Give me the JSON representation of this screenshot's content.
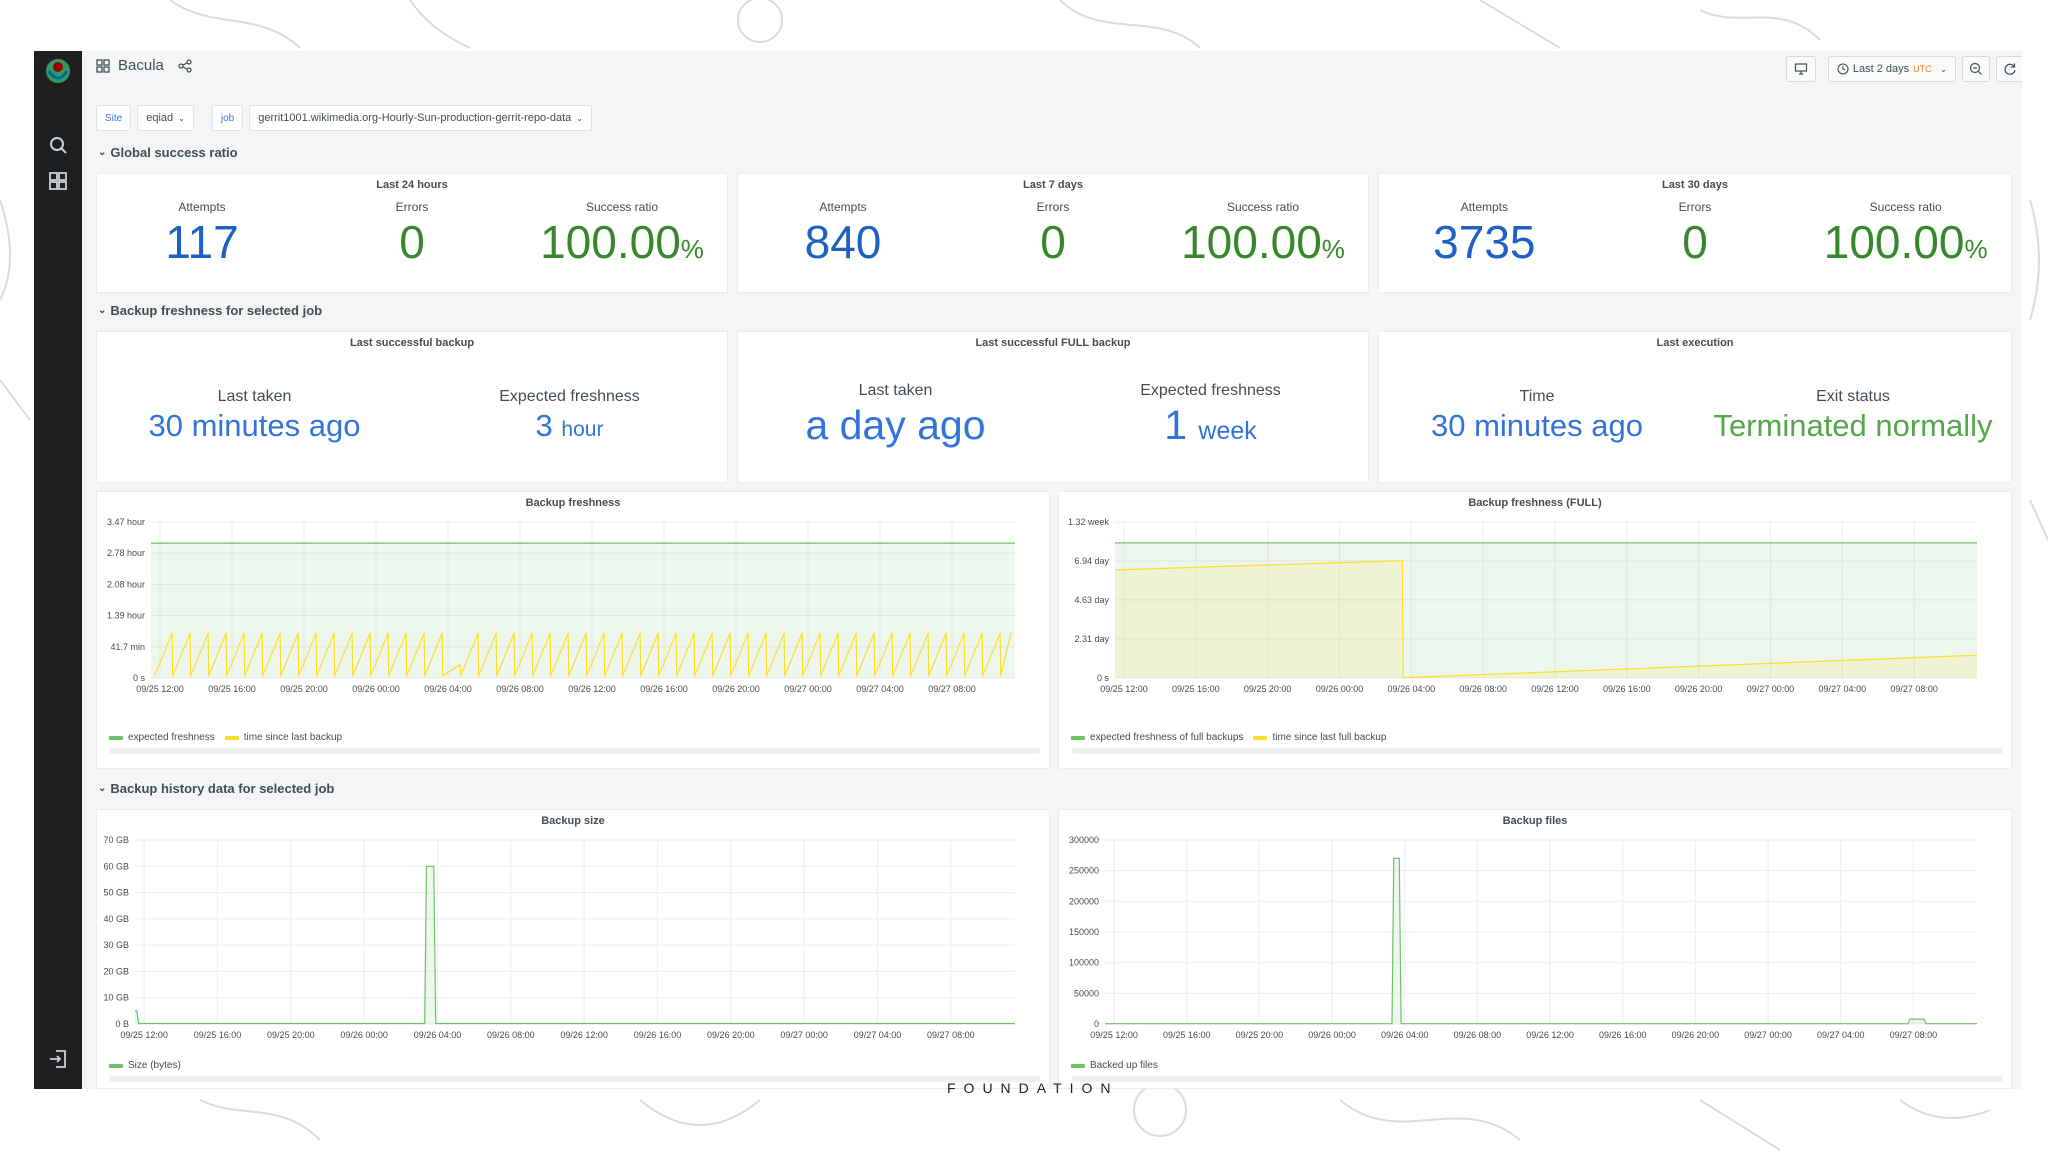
{
  "colors": {
    "blue": "#1f60c4",
    "green": "#37872d",
    "bright_blue": "#3274d9",
    "bright_green": "#56a64b",
    "series_green": "#73bf69",
    "series_yellow": "#fade2a",
    "sidebar": "#1f1f20",
    "background": "#f4f5f5"
  },
  "sidebar": {
    "logo_icon": "wikimedia-logo-icon",
    "items": [
      {
        "name": "search",
        "icon": "search-icon"
      },
      {
        "name": "dashboards",
        "icon": "grid-icon"
      },
      {
        "name": "sign-in",
        "icon": "sign-in-icon"
      }
    ]
  },
  "header": {
    "dashboard_title": "Bacula",
    "time_range": "Last 2 days",
    "timezone": "UTC"
  },
  "variables": [
    {
      "label": "Site",
      "value": "eqiad"
    },
    {
      "label": "job",
      "value": "gerrit1001.wikimedia.org-Hourly-Sun-production-gerrit-repo-data"
    }
  ],
  "rows": {
    "global": "Global success ratio",
    "freshness": "Backup freshness for selected job",
    "history": "Backup history data for selected job"
  },
  "success_panels": [
    {
      "title": "Last 24 hours",
      "attempts": "117",
      "errors": "0",
      "ratio": "100.00",
      "unit": "%"
    },
    {
      "title": "Last 7 days",
      "attempts": "840",
      "errors": "0",
      "ratio": "100.00",
      "unit": "%"
    },
    {
      "title": "Last 30 days",
      "attempts": "3735",
      "errors": "0",
      "ratio": "100.00",
      "unit": "%"
    }
  ],
  "stat_labels": {
    "attempts": "Attempts",
    "errors": "Errors",
    "ratio": "Success ratio"
  },
  "freshness_panels": {
    "last_backup": {
      "title": "Last successful backup",
      "taken_label": "Last taken",
      "taken_value": "30 minutes ago",
      "expected_label": "Expected freshness",
      "expected_value": "3",
      "expected_unit": "hour"
    },
    "last_full": {
      "title": "Last successful FULL backup",
      "taken_label": "Last taken",
      "taken_value": "a day ago",
      "expected_label": "Expected freshness",
      "expected_value": "1",
      "expected_unit": "week"
    },
    "last_exec": {
      "title": "Last execution",
      "time_label": "Time",
      "time_value": "30 minutes ago",
      "exit_label": "Exit status",
      "exit_value": "Terminated normally"
    }
  },
  "footer_text": "FOUNDATION",
  "chart_data": [
    {
      "id": "freshness",
      "type": "line",
      "title": "Backup freshness",
      "x_ticks": [
        "09/25 12:00",
        "09/25 16:00",
        "09/25 20:00",
        "09/26 00:00",
        "09/26 04:00",
        "09/26 08:00",
        "09/26 12:00",
        "09/26 16:00",
        "09/26 20:00",
        "09/27 00:00",
        "09/27 04:00",
        "09/27 08:00"
      ],
      "x_range": [
        0,
        48
      ],
      "ylim": [
        0,
        3.47
      ],
      "y_ticks": [
        {
          "v": 0,
          "label": "0 s"
        },
        {
          "v": 0.695,
          "label": "41.7 min"
        },
        {
          "v": 1.39,
          "label": "1.39 hour"
        },
        {
          "v": 2.08,
          "label": "2.08 hour"
        },
        {
          "v": 2.78,
          "label": "2.78 hour"
        },
        {
          "v": 3.47,
          "label": "3.47 hour"
        }
      ],
      "series": [
        {
          "name": "expected freshness",
          "color": "#73bf69",
          "fill": true,
          "x": [
            0,
            48
          ],
          "y": [
            3.0,
            3.0
          ]
        },
        {
          "name": "time since last backup",
          "color": "#fade2a",
          "pattern": "sawtooth",
          "x_start": 0.2,
          "x_end": 47.8,
          "period": 1.0,
          "low": 0.05,
          "high": 1.0,
          "dip_at": 16.2
        }
      ]
    },
    {
      "id": "freshness_full",
      "type": "line",
      "title": "Backup freshness (FULL)",
      "x_ticks": [
        "09/25 12:00",
        "09/25 16:00",
        "09/25 20:00",
        "09/26 00:00",
        "09/26 04:00",
        "09/26 08:00",
        "09/26 12:00",
        "09/26 16:00",
        "09/26 20:00",
        "09/27 00:00",
        "09/27 04:00",
        "09/27 08:00"
      ],
      "x_range": [
        0,
        48
      ],
      "ylim": [
        0,
        9.24
      ],
      "y_ticks": [
        {
          "v": 0,
          "label": "0 s"
        },
        {
          "v": 2.31,
          "label": "2.31 day"
        },
        {
          "v": 4.63,
          "label": "4.63 day"
        },
        {
          "v": 6.94,
          "label": "6.94 day"
        },
        {
          "v": 9.24,
          "label": "1.32 week"
        }
      ],
      "series": [
        {
          "name": "expected freshness of full backups",
          "color": "#73bf69",
          "fill": true,
          "x": [
            0,
            48
          ],
          "y": [
            8.0,
            8.0
          ]
        },
        {
          "name": "time since last full backup",
          "color": "#fade2a",
          "fill": true,
          "x": [
            0,
            16.0,
            16.05,
            48
          ],
          "y": [
            6.4,
            6.95,
            0.02,
            1.35
          ]
        }
      ]
    },
    {
      "id": "size",
      "type": "line",
      "title": "Backup size",
      "x_ticks": [
        "09/25 12:00",
        "09/25 16:00",
        "09/25 20:00",
        "09/26 00:00",
        "09/26 04:00",
        "09/26 08:00",
        "09/26 12:00",
        "09/26 16:00",
        "09/26 20:00",
        "09/27 00:00",
        "09/27 04:00",
        "09/27 08:00"
      ],
      "x_range": [
        0,
        48
      ],
      "ylim": [
        0,
        70
      ],
      "y_ticks": [
        {
          "v": 0,
          "label": "0 B"
        },
        {
          "v": 10,
          "label": "10 GB"
        },
        {
          "v": 20,
          "label": "20 GB"
        },
        {
          "v": 30,
          "label": "30 GB"
        },
        {
          "v": 40,
          "label": "40 GB"
        },
        {
          "v": 50,
          "label": "50 GB"
        },
        {
          "v": 60,
          "label": "60 GB"
        },
        {
          "v": 70,
          "label": "70 GB"
        }
      ],
      "series": [
        {
          "name": "Size (bytes)",
          "color": "#73bf69",
          "fill": true,
          "x": [
            0,
            0.1,
            0.2,
            15.8,
            15.9,
            16.3,
            16.4,
            48
          ],
          "y": [
            5,
            5,
            0.2,
            0.2,
            60,
            60,
            0.2,
            0.2
          ]
        }
      ]
    },
    {
      "id": "files",
      "type": "line",
      "title": "Backup files",
      "x_ticks": [
        "09/25 12:00",
        "09/25 16:00",
        "09/25 20:00",
        "09/26 00:00",
        "09/26 04:00",
        "09/26 08:00",
        "09/26 12:00",
        "09/26 16:00",
        "09/26 20:00",
        "09/27 00:00",
        "09/27 04:00",
        "09/27 08:00"
      ],
      "x_range": [
        0,
        48
      ],
      "ylim": [
        0,
        300000
      ],
      "y_ticks": [
        {
          "v": 0,
          "label": "0"
        },
        {
          "v": 50000,
          "label": "50000"
        },
        {
          "v": 100000,
          "label": "100000"
        },
        {
          "v": 150000,
          "label": "150000"
        },
        {
          "v": 200000,
          "label": "200000"
        },
        {
          "v": 250000,
          "label": "250000"
        },
        {
          "v": 300000,
          "label": "300000"
        }
      ],
      "series": [
        {
          "name": "Backed up files",
          "color": "#73bf69",
          "fill": true,
          "x": [
            0,
            15.8,
            15.9,
            16.2,
            16.3,
            44.2,
            44.3,
            45.1,
            45.2,
            48
          ],
          "y": [
            500,
            500,
            270000,
            270000,
            500,
            500,
            8000,
            8000,
            500,
            500
          ]
        }
      ]
    }
  ]
}
